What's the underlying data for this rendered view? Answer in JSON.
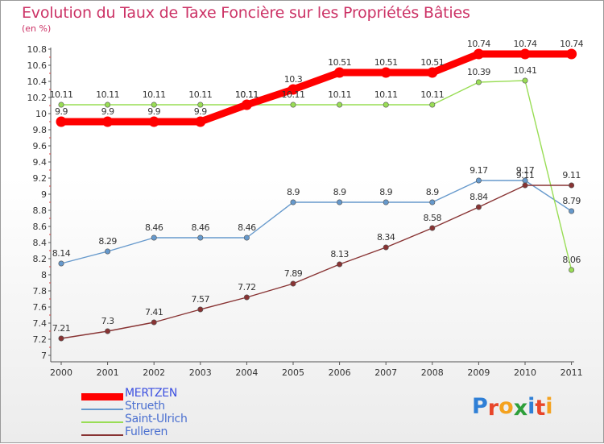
{
  "title": "Evolution du Taux de Taxe Foncière sur les Propriétés Bâties",
  "unit": "(en %)",
  "brand": {
    "letters": [
      "P",
      "r",
      "o",
      "x",
      "i",
      "t",
      "i"
    ],
    "colors": [
      "#2f7fd6",
      "#e8462a",
      "#f4a21f",
      "#2e9f3a",
      "#2f7fd6",
      "#e8462a",
      "#f4a21f"
    ]
  },
  "chart_data": {
    "type": "line",
    "title": "Evolution du Taux de Taxe Foncière sur les Propriétés Bâties",
    "ylabel": "(en %)",
    "xlabel": "",
    "x": [
      "2000",
      "2001",
      "2002",
      "2003",
      "2004",
      "2005",
      "2006",
      "2007",
      "2008",
      "2009",
      "2010",
      "2011"
    ],
    "ylim": [
      7,
      10.8
    ],
    "yticks": [
      "7",
      "7.2",
      "7.4",
      "7.6",
      "7.8",
      "8",
      "8.2",
      "8.4",
      "8.6",
      "8.8",
      "9",
      "9.2",
      "9.4",
      "9.6",
      "9.8",
      "10",
      "10.2",
      "10.4",
      "10.6",
      "10.8"
    ],
    "grid": false,
    "legend_position": "bottom-left",
    "series": [
      {
        "name": "MERTZEN",
        "color": "#ff0000",
        "values": [
          9.9,
          9.9,
          9.9,
          9.9,
          10.11,
          10.3,
          10.51,
          10.51,
          10.51,
          10.74,
          10.74,
          10.74
        ],
        "labels": [
          "9.9",
          "9.9",
          "9.9",
          "9.9",
          "10.11",
          "10.3",
          "10.51",
          "10.51",
          "10.51",
          "10.74",
          "10.74",
          "10.74"
        ]
      },
      {
        "name": "Strueth",
        "color": "#6699cc",
        "values": [
          8.14,
          8.29,
          8.46,
          8.46,
          8.46,
          8.9,
          8.9,
          8.9,
          8.9,
          9.17,
          9.17,
          8.79
        ],
        "labels": [
          "8.14",
          "8.29",
          "8.46",
          "8.46",
          "8.46",
          "8.9",
          "8.9",
          "8.9",
          "8.9",
          "9.17",
          "9.17",
          "8.79"
        ]
      },
      {
        "name": "Saint-Ulrich",
        "color": "#99dd55",
        "values": [
          10.11,
          10.11,
          10.11,
          10.11,
          10.11,
          10.11,
          10.11,
          10.11,
          10.11,
          10.39,
          10.41,
          8.06
        ],
        "labels": [
          "10.11",
          "10.11",
          "10.11",
          "10.11",
          "10.11",
          "10.11",
          "10.11",
          "10.11",
          "10.11",
          "10.39",
          "10.41",
          "8.06"
        ]
      },
      {
        "name": "Fulleren",
        "color": "#883333",
        "values": [
          7.21,
          7.3,
          7.41,
          7.57,
          7.72,
          7.89,
          8.13,
          8.34,
          8.58,
          8.84,
          9.11,
          9.11
        ],
        "labels": [
          "7.21",
          "7.3",
          "7.41",
          "7.57",
          "7.72",
          "7.89",
          "8.13",
          "8.34",
          "8.58",
          "8.84",
          "9.11",
          "9.11"
        ]
      }
    ]
  }
}
